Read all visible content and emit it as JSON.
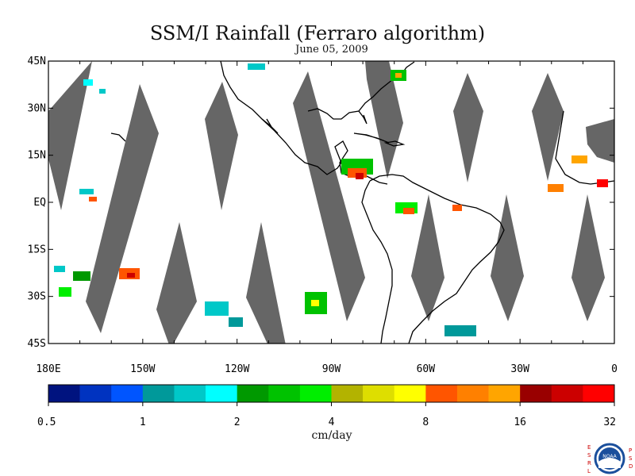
{
  "title": "SSM/I Rainfall (Ferraro algorithm)",
  "subtitle": "June 05, 2009",
  "map": {
    "lon_range": [
      180,
      360
    ],
    "lat_range": [
      -45,
      45
    ],
    "lat_ticks": [
      {
        "lat": 45,
        "label": "45N"
      },
      {
        "lat": 30,
        "label": "30N"
      },
      {
        "lat": 15,
        "label": "15N"
      },
      {
        "lat": 0,
        "label": "EQ"
      },
      {
        "lat": -15,
        "label": "15S"
      },
      {
        "lat": -30,
        "label": "30S"
      },
      {
        "lat": -45,
        "label": "45S"
      }
    ],
    "lon_ticks": [
      {
        "lon": 180,
        "label": "180E"
      },
      {
        "lon": 210,
        "label": "150W"
      },
      {
        "lon": 240,
        "label": "120W"
      },
      {
        "lon": 270,
        "label": "90W"
      },
      {
        "lon": 300,
        "label": "60W"
      },
      {
        "lon": 330,
        "label": "30W"
      },
      {
        "lon": 360,
        "label": "0"
      }
    ],
    "no_data_color": "#666666",
    "coast_color": "#000000"
  },
  "colorbar": {
    "colors": [
      "#00137f",
      "#0033c0",
      "#0055ff",
      "#00999a",
      "#00c8c8",
      "#00ffff",
      "#009900",
      "#00c200",
      "#00ee00",
      "#b3b300",
      "#dede00",
      "#ffff00",
      "#ff5500",
      "#ff8000",
      "#ffa500",
      "#990000",
      "#cc0000",
      "#ff0000"
    ],
    "labels": [
      "0.5",
      "1",
      "2",
      "4",
      "8",
      "16",
      "32"
    ],
    "units": "cm/day"
  },
  "logo": {
    "left_letters": "ESRL",
    "right_letters": "PSD",
    "text": "NOAA",
    "ring_color": "#1b4f9c",
    "letter_color": "#cc0000"
  }
}
